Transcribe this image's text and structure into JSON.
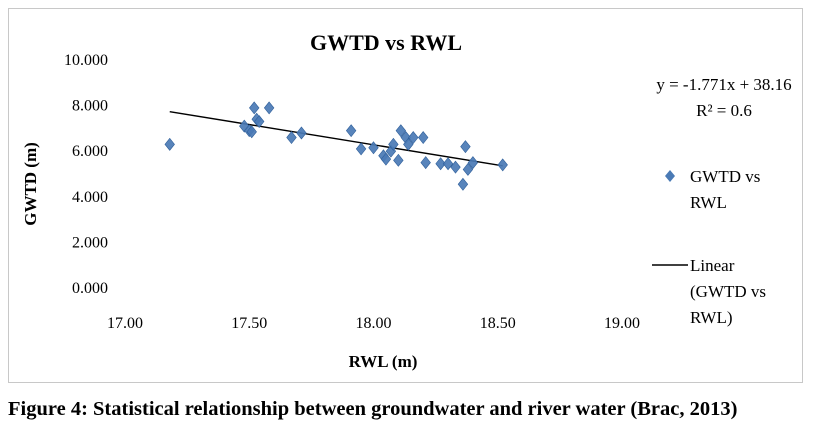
{
  "figure": {
    "caption": "Figure 4: Statistical relationship between groundwater and river water (Brac, 2013)"
  },
  "chart_data": {
    "type": "scatter",
    "title": "GWTD vs RWL",
    "xlabel": "RWL (m)",
    "ylabel": "GWTD (m)",
    "xlim": [
      17.0,
      19.0
    ],
    "ylim": [
      0.0,
      10.0
    ],
    "x_ticks": [
      17.0,
      17.5,
      18.0,
      18.5,
      19.0
    ],
    "x_tick_labels": [
      "17.00",
      "17.50",
      "18.00",
      "18.50",
      "19.00"
    ],
    "y_ticks": [
      0,
      2,
      4,
      6,
      8,
      10
    ],
    "y_tick_labels": [
      "0.000",
      "2.000",
      "4.000",
      "6.000",
      "8.000",
      "10.000"
    ],
    "grid": false,
    "legend_position": "right",
    "series": [
      {
        "name": "GWTD vs RWL",
        "marker": "diamond",
        "color": "#4a7ab5",
        "points": [
          [
            17.18,
            6.3
          ],
          [
            17.48,
            7.1
          ],
          [
            17.5,
            6.9
          ],
          [
            17.51,
            6.85
          ],
          [
            17.52,
            7.9
          ],
          [
            17.53,
            7.4
          ],
          [
            17.54,
            7.3
          ],
          [
            17.58,
            7.9
          ],
          [
            17.67,
            6.6
          ],
          [
            17.71,
            6.8
          ],
          [
            17.91,
            6.9
          ],
          [
            17.95,
            6.1
          ],
          [
            18.0,
            6.15
          ],
          [
            18.04,
            5.8
          ],
          [
            18.05,
            5.65
          ],
          [
            18.07,
            6.0
          ],
          [
            18.08,
            6.3
          ],
          [
            18.1,
            5.6
          ],
          [
            18.11,
            6.9
          ],
          [
            18.13,
            6.6
          ],
          [
            18.14,
            6.3
          ],
          [
            18.16,
            6.6
          ],
          [
            18.2,
            6.6
          ],
          [
            18.21,
            5.5
          ],
          [
            18.27,
            5.45
          ],
          [
            18.3,
            5.45
          ],
          [
            18.33,
            5.3
          ],
          [
            18.36,
            4.55
          ],
          [
            18.37,
            6.2
          ],
          [
            18.38,
            5.2
          ],
          [
            18.4,
            5.5
          ],
          [
            18.52,
            5.4
          ]
        ]
      },
      {
        "name": "Linear (GWTD vs RWL)",
        "legend_lines": [
          "Linear",
          "(GWTD vs",
          "RWL)"
        ],
        "type": "line",
        "color": "#000000",
        "slope": -1.771,
        "intercept": 38.16,
        "x_range": [
          17.18,
          18.52
        ]
      }
    ],
    "annotations": {
      "equation": "y = -1.771x + 38.16",
      "r_squared": "R² = 0.6"
    },
    "legend": {
      "scatter_label_lines": [
        "GWTD vs",
        "RWL"
      ]
    }
  }
}
